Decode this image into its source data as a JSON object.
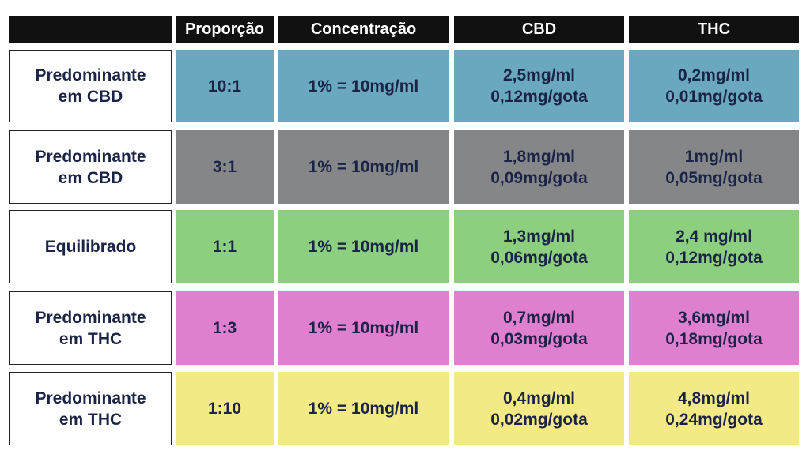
{
  "table": {
    "header": [
      "Proporção",
      "Concentração",
      "CBD",
      "THC"
    ],
    "rows": [
      {
        "label": [
          "Predominante",
          "em CBD"
        ],
        "ratio": "10:1",
        "concentration": "1% = 10mg/ml",
        "cbd": [
          "2,5mg/ml",
          "0,12mg/gota"
        ],
        "thc": [
          "0,2mg/ml",
          "0,01mg/gota"
        ],
        "color": "#6aa8bf"
      },
      {
        "label": [
          "Predominante",
          "em CBD"
        ],
        "ratio": "3:1",
        "concentration": "1% = 10mg/ml",
        "cbd": [
          "1,8mg/ml",
          "0,09mg/gota"
        ],
        "thc": [
          "1mg/ml",
          "0,05mg/gota"
        ],
        "color": "#858688"
      },
      {
        "label": [
          "Equilibrado"
        ],
        "ratio": "1:1",
        "concentration": "1% = 10mg/ml",
        "cbd": [
          "1,3mg/ml",
          "0,06mg/gota"
        ],
        "thc": [
          "2,4 mg/ml",
          "0,12mg/gota"
        ],
        "color": "#8ccf7e"
      },
      {
        "label": [
          "Predominante",
          "em THC"
        ],
        "ratio": "1:3",
        "concentration": "1% = 10mg/ml",
        "cbd": [
          "0,7mg/ml",
          "0,03mg/gota"
        ],
        "thc": [
          "3,6mg/ml",
          "0,18mg/gota"
        ],
        "color": "#de7fd0"
      },
      {
        "label": [
          "Predominante",
          "em THC"
        ],
        "ratio": "1:10",
        "concentration": "1% = 10mg/ml",
        "cbd": [
          "0,4mg/ml",
          "0,02mg/gota"
        ],
        "thc": [
          "4,8mg/ml",
          "0,24mg/gota"
        ],
        "color": "#f3ea86"
      }
    ]
  }
}
